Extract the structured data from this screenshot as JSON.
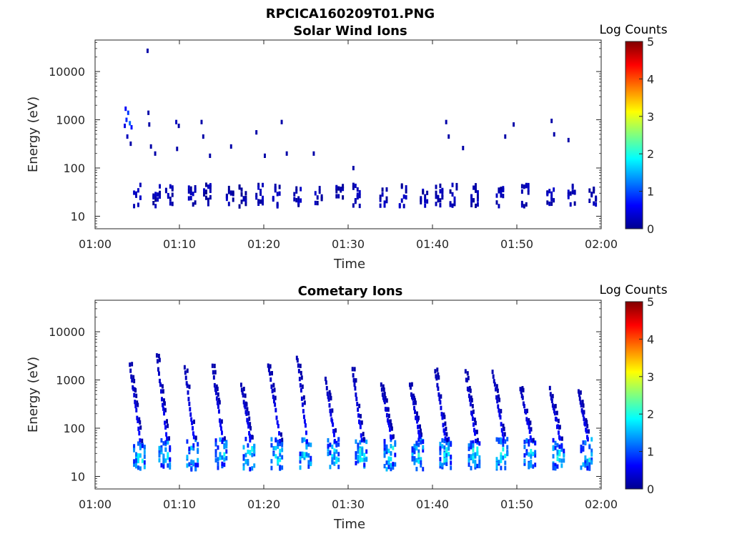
{
  "figure_title": "RPCICA160209T01.PNG",
  "chart_data": [
    {
      "type": "heatmap",
      "title": "Solar Wind Ions",
      "xlabel": "Time",
      "ylabel": "Energy (eV)",
      "x_ticks": [
        "01:00",
        "01:10",
        "01:20",
        "01:30",
        "01:40",
        "01:50",
        "02:00"
      ],
      "x_range": [
        "01:00",
        "02:00"
      ],
      "y_scale": "log",
      "y_ticks": [
        "10",
        "100",
        "1000",
        "10000"
      ],
      "y_range": [
        5.5,
        45000
      ],
      "colorbar": {
        "label": "Log Counts",
        "ticks": [
          "0",
          "1",
          "2",
          "3",
          "4",
          "5"
        ],
        "range": [
          0,
          5
        ],
        "colormap": "jet"
      },
      "main_band": {
        "energy_range": [
          16,
          45
        ],
        "bursts": [
          4.5,
          6.8,
          8.3,
          11.0,
          12.8,
          15.5,
          17.0,
          19.0,
          21.0,
          23.5,
          26.0,
          28.5,
          30.5,
          33.7,
          36.0,
          38.5,
          40.3,
          42.0,
          44.5,
          47.5,
          50.5,
          53.5,
          56.0,
          58.5
        ],
        "log_counts": 0.2
      },
      "scattered_points": [
        {
          "time_min": 3.5,
          "energy_ev": 1700,
          "log_counts": 0.6
        },
        {
          "time_min": 3.8,
          "energy_ev": 1400,
          "log_counts": 0.9
        },
        {
          "time_min": 3.6,
          "energy_ev": 1000,
          "log_counts": 0.8
        },
        {
          "time_min": 4.0,
          "energy_ev": 850,
          "log_counts": 1.1
        },
        {
          "time_min": 3.4,
          "energy_ev": 750,
          "log_counts": 0.5
        },
        {
          "time_min": 4.2,
          "energy_ev": 700,
          "log_counts": 0.7
        },
        {
          "time_min": 3.7,
          "energy_ev": 450,
          "log_counts": 0.3
        },
        {
          "time_min": 4.1,
          "energy_ev": 320,
          "log_counts": 0.2
        },
        {
          "time_min": 6.1,
          "energy_ev": 27000,
          "log_counts": 0.2
        },
        {
          "time_min": 6.2,
          "energy_ev": 1400,
          "log_counts": 0.2
        },
        {
          "time_min": 6.3,
          "energy_ev": 800,
          "log_counts": 0.2
        },
        {
          "time_min": 6.5,
          "energy_ev": 280,
          "log_counts": 0.2
        },
        {
          "time_min": 7.0,
          "energy_ev": 200,
          "log_counts": 0.2
        },
        {
          "time_min": 9.5,
          "energy_ev": 900,
          "log_counts": 0.3
        },
        {
          "time_min": 9.8,
          "energy_ev": 750,
          "log_counts": 0.2
        },
        {
          "time_min": 9.6,
          "energy_ev": 250,
          "log_counts": 0.2
        },
        {
          "time_min": 12.5,
          "energy_ev": 900,
          "log_counts": 0.2
        },
        {
          "time_min": 12.7,
          "energy_ev": 450,
          "log_counts": 0.2
        },
        {
          "time_min": 13.5,
          "energy_ev": 180,
          "log_counts": 0.2
        },
        {
          "time_min": 16.0,
          "energy_ev": 280,
          "log_counts": 0.2
        },
        {
          "time_min": 19.0,
          "energy_ev": 550,
          "log_counts": 0.2
        },
        {
          "time_min": 20.0,
          "energy_ev": 180,
          "log_counts": 0.2
        },
        {
          "time_min": 22.0,
          "energy_ev": 900,
          "log_counts": 0.2
        },
        {
          "time_min": 22.6,
          "energy_ev": 200,
          "log_counts": 0.2
        },
        {
          "time_min": 25.8,
          "energy_ev": 200,
          "log_counts": 0.2
        },
        {
          "time_min": 30.5,
          "energy_ev": 100,
          "log_counts": 0.2
        },
        {
          "time_min": 41.5,
          "energy_ev": 900,
          "log_counts": 0.2
        },
        {
          "time_min": 41.8,
          "energy_ev": 450,
          "log_counts": 0.2
        },
        {
          "time_min": 43.5,
          "energy_ev": 260,
          "log_counts": 0.2
        },
        {
          "time_min": 48.5,
          "energy_ev": 450,
          "log_counts": 0.2
        },
        {
          "time_min": 49.5,
          "energy_ev": 800,
          "log_counts": 0.2
        },
        {
          "time_min": 54.0,
          "energy_ev": 950,
          "log_counts": 0.2
        },
        {
          "time_min": 54.3,
          "energy_ev": 500,
          "log_counts": 0.2
        },
        {
          "time_min": 56.0,
          "energy_ev": 380,
          "log_counts": 0.2
        }
      ]
    },
    {
      "type": "heatmap",
      "title": "Cometary Ions",
      "xlabel": "Time",
      "ylabel": "Energy (eV)",
      "x_ticks": [
        "01:00",
        "01:10",
        "01:20",
        "01:30",
        "01:40",
        "01:50",
        "02:00"
      ],
      "x_range": [
        "01:00",
        "02:00"
      ],
      "y_scale": "log",
      "y_ticks": [
        "10",
        "100",
        "1000",
        "10000"
      ],
      "y_range": [
        5.5,
        45000
      ],
      "colorbar": {
        "label": "Log Counts",
        "ticks": [
          "0",
          "1",
          "2",
          "3",
          "4",
          "5"
        ],
        "range": [
          0,
          5
        ],
        "colormap": "jet"
      },
      "main_band": {
        "energy_range": [
          14,
          60
        ],
        "bursts": [
          4.5,
          7.5,
          10.8,
          14.2,
          17.5,
          20.8,
          24.2,
          27.5,
          30.8,
          34.2,
          37.5,
          40.8,
          44.2,
          47.5,
          50.8,
          54.2,
          57.5
        ],
        "log_counts": 1.0
      },
      "dispersion_tracks": [
        {
          "start_min": 4.0,
          "end_min": 5.2,
          "e_high": 2200,
          "e_low": 60
        },
        {
          "start_min": 7.2,
          "end_min": 8.4,
          "e_high": 3000,
          "e_low": 60
        },
        {
          "start_min": 10.5,
          "end_min": 11.6,
          "e_high": 1800,
          "e_low": 60
        },
        {
          "start_min": 13.8,
          "end_min": 15.0,
          "e_high": 1800,
          "e_low": 60
        },
        {
          "start_min": 17.2,
          "end_min": 18.3,
          "e_high": 800,
          "e_low": 60
        },
        {
          "start_min": 20.4,
          "end_min": 21.8,
          "e_high": 2200,
          "e_low": 60
        },
        {
          "start_min": 23.8,
          "end_min": 25.0,
          "e_high": 3200,
          "e_low": 60
        },
        {
          "start_min": 27.2,
          "end_min": 28.3,
          "e_high": 1000,
          "e_low": 60
        },
        {
          "start_min": 30.4,
          "end_min": 31.5,
          "e_high": 1600,
          "e_low": 60
        },
        {
          "start_min": 33.8,
          "end_min": 35.0,
          "e_high": 800,
          "e_low": 60
        },
        {
          "start_min": 37.2,
          "end_min": 38.4,
          "e_high": 800,
          "e_low": 60
        },
        {
          "start_min": 40.2,
          "end_min": 41.4,
          "e_high": 1600,
          "e_low": 60
        },
        {
          "start_min": 43.8,
          "end_min": 45.0,
          "e_high": 1400,
          "e_low": 60
        },
        {
          "start_min": 47.0,
          "end_min": 48.3,
          "e_high": 1500,
          "e_low": 60
        },
        {
          "start_min": 50.3,
          "end_min": 51.6,
          "e_high": 700,
          "e_low": 60
        },
        {
          "start_min": 53.8,
          "end_min": 55.0,
          "e_high": 650,
          "e_low": 60
        },
        {
          "start_min": 57.2,
          "end_min": 58.3,
          "e_high": 550,
          "e_low": 60
        }
      ]
    }
  ]
}
